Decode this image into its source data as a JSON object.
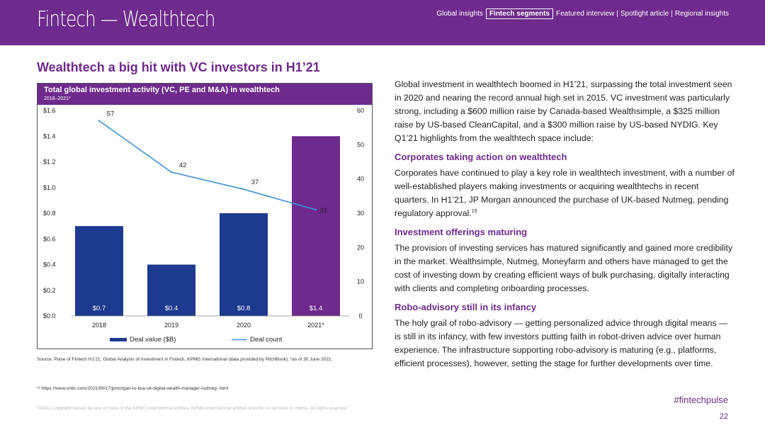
{
  "header": {
    "title": "Fintech — Wealthtech",
    "nav": [
      "Global insights",
      "Fintech segments",
      "Featured interview",
      "Spotlight article",
      "Regional insights"
    ],
    "nav_separator": "|",
    "active_nav": 1
  },
  "heading": "Wealthtech a big hit with VC investors in H1’21",
  "chart_data": {
    "type": "bar",
    "title": "Total global investment activity (VC, PE and M&A) in wealthtech",
    "subtitle": "2018–2021*",
    "categories": [
      "2018",
      "2019",
      "2020",
      "2021*"
    ],
    "series": [
      {
        "name": "Deal value ($B)",
        "type": "bar",
        "axis": "left",
        "values": [
          0.7,
          0.4,
          0.8,
          1.4
        ],
        "labels": [
          "$0.7",
          "$0.4",
          "$0.8",
          "$1.4"
        ],
        "colors": [
          "#1e3a8f",
          "#1e3a8f",
          "#1e3a8f",
          "#6e2a8c"
        ]
      },
      {
        "name": "Deal count",
        "type": "line",
        "axis": "right",
        "values": [
          57,
          42,
          37,
          31
        ],
        "color": "#3b93d4"
      }
    ],
    "left_axis": {
      "ticks": [
        "$0.0",
        "$0.2",
        "$0.4",
        "$0.6",
        "$0.8",
        "$1.0",
        "$1.2",
        "$1.4",
        "$1.6"
      ],
      "ylim": [
        0,
        1.6
      ]
    },
    "right_axis": {
      "ticks": [
        "0",
        "10",
        "20",
        "30",
        "40",
        "50",
        "60"
      ],
      "ylim": [
        0,
        60
      ]
    },
    "legend": "bottom",
    "grid": false
  },
  "source": "Source: Pulse of Fintech H1’21, Global Analysis of Investment in Fintech, KPMG International (data provided by PitchBook), *as of 30 June 2021.",
  "footnote": "¹⁵ https://www.cnbc.com/2021/06/17/jpmorgan-to-buy-uk-digital-wealth-manager-nutmeg-.html",
  "copyright": "©2021 Copyright owned by one or more of the KPMG International entities. KPMG International entities provide no services to clients. All rights reserved.",
  "body": {
    "intro": "Global investment in wealthtech boomed in H1’21, surpassing the total investment seen in 2020 and nearing the record annual high set in 2015. VC investment was particularly strong, including a $600 million raise by Canada-based Wealthsimple, a $325 million raise by US-based CleanCapital, and a $300 million raise by US-based NYDIG. Key Q1’21 highlights from the wealthtech space include:",
    "sections": [
      {
        "heading": "Corporates taking action on wealthtech",
        "text": "Corporates have continued to play a key role in wealthtech investment, with a number of well-established players making investments or acquiring wealthtechs in recent quarters. In H1’21, JP Morgan announced the purchase of UK-based Nutmeg, pending regulatory approval.",
        "note": "15"
      },
      {
        "heading": "Investment offerings maturing",
        "text": "The provision of investing services has matured significantly and gained more credibility in the market. Wealthsimple, Nutmeg, Moneyfarm and others have managed to get the cost of investing down by creating efficient ways of bulk purchasing, digitally interacting with clients and completing onboarding processes."
      },
      {
        "heading": "Robo-advisory still in its infancy",
        "text": "The holy grail of robo-advisory — getting personalized advice through digital means — is still in its infancy, with few investors putting faith in robot-driven advice over human experience. The infrastructure supporting robo-advisory is maturing (e.g., platforms, efficient processes), however, setting the stage for further developments over time."
      }
    ]
  },
  "footer": {
    "hashtag": "#fintechpulse",
    "page": "22"
  },
  "colors": {
    "brand": "#6e2a8c",
    "bar": "#1e3a8f",
    "line": "#3b93d4"
  }
}
